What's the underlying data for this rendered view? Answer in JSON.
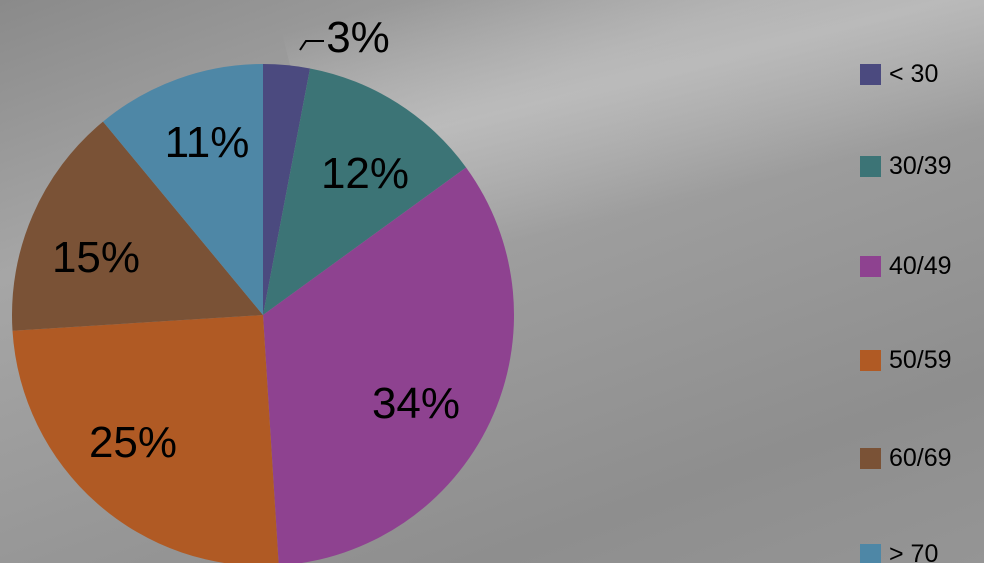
{
  "chart_data": {
    "type": "pie",
    "categories": [
      "< 30",
      "30/39",
      "40/49",
      "50/59",
      "60/69",
      "> 70"
    ],
    "values": [
      3,
      12,
      34,
      25,
      15,
      11
    ],
    "data_labels": [
      "3%",
      "12%",
      "34%",
      "25%",
      "15%",
      "11%"
    ],
    "colors": [
      "#4b4a7f",
      "#3c7476",
      "#8e4290",
      "#b05a24",
      "#7a5236",
      "#4e87a6"
    ],
    "legend": "right",
    "title": ""
  }
}
